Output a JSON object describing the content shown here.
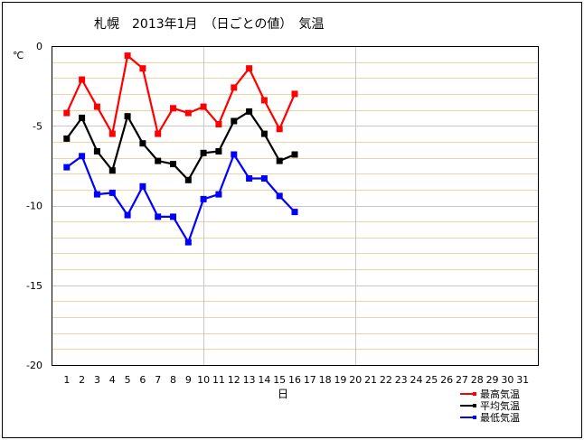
{
  "chart_data": {
    "type": "line",
    "title": "札幌　2013年1月　（日ごとの値）　気温",
    "ylabel": "℃",
    "xlabel": "日",
    "ylim": [
      -20,
      0
    ],
    "yticks": [
      0,
      -5,
      -10,
      -15,
      -20
    ],
    "xlim": [
      0,
      32
    ],
    "categories": [
      1,
      2,
      3,
      4,
      5,
      6,
      7,
      8,
      9,
      10,
      11,
      12,
      13,
      14,
      15,
      16,
      17,
      18,
      19,
      20,
      21,
      22,
      23,
      24,
      25,
      26,
      27,
      28,
      29,
      30,
      31
    ],
    "grid": true,
    "legend_position": "bottom-right",
    "series": [
      {
        "name": "最高気温",
        "color": "#ff0000",
        "x": [
          1,
          2,
          3,
          4,
          5,
          6,
          7,
          8,
          9,
          10,
          11,
          12,
          13,
          14,
          15,
          16
        ],
        "values": [
          -4.2,
          -2.1,
          -3.8,
          -5.5,
          -0.6,
          -1.4,
          -5.5,
          -3.9,
          -4.2,
          -3.8,
          -4.9,
          -2.6,
          -1.4,
          -3.4,
          -5.2,
          -3.0
        ]
      },
      {
        "name": "平均気温",
        "color": "#000000",
        "x": [
          1,
          2,
          3,
          4,
          5,
          6,
          7,
          8,
          9,
          10,
          11,
          12,
          13,
          14,
          15,
          16
        ],
        "values": [
          -5.8,
          -4.5,
          -6.6,
          -7.8,
          -4.4,
          -6.1,
          -7.2,
          -7.4,
          -8.4,
          -6.7,
          -6.6,
          -4.7,
          -4.1,
          -5.5,
          -7.2,
          -6.8
        ]
      },
      {
        "name": "最低気温",
        "color": "#0000ff",
        "x": [
          1,
          2,
          3,
          4,
          5,
          6,
          7,
          8,
          9,
          10,
          11,
          12,
          13,
          14,
          15,
          16
        ],
        "values": [
          -7.6,
          -6.9,
          -9.3,
          -9.2,
          -10.6,
          -8.8,
          -10.7,
          -10.7,
          -12.3,
          -9.6,
          -9.3,
          -6.8,
          -8.3,
          -8.3,
          -9.4,
          -10.4
        ]
      }
    ]
  }
}
